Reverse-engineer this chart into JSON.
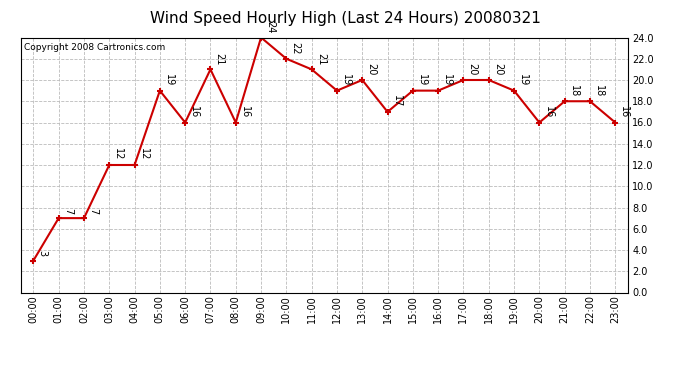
{
  "title": "Wind Speed Hourly High (Last 24 Hours) 20080321",
  "copyright": "Copyright 2008 Cartronics.com",
  "hours": [
    "00:00",
    "01:00",
    "02:00",
    "03:00",
    "04:00",
    "05:00",
    "06:00",
    "07:00",
    "08:00",
    "09:00",
    "10:00",
    "11:00",
    "12:00",
    "13:00",
    "14:00",
    "15:00",
    "16:00",
    "17:00",
    "18:00",
    "19:00",
    "20:00",
    "21:00",
    "22:00",
    "23:00"
  ],
  "values": [
    3,
    7,
    7,
    12,
    12,
    19,
    16,
    21,
    16,
    24,
    22,
    21,
    19,
    20,
    17,
    19,
    19,
    20,
    20,
    19,
    16,
    18,
    18,
    16
  ],
  "line_color": "#cc0000",
  "marker_color": "#cc0000",
  "bg_color": "#ffffff",
  "grid_color": "#bbbbbb",
  "ylim": [
    0.0,
    24.0
  ],
  "yticks": [
    0.0,
    2.0,
    4.0,
    6.0,
    8.0,
    10.0,
    12.0,
    14.0,
    16.0,
    18.0,
    20.0,
    22.0,
    24.0
  ],
  "title_fontsize": 11,
  "label_fontsize": 7,
  "annotation_fontsize": 7,
  "copyright_fontsize": 6.5
}
